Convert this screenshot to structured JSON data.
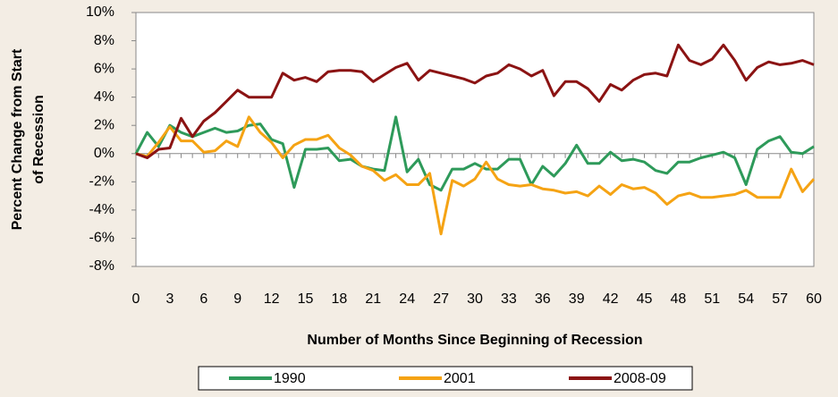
{
  "chart_data": {
    "type": "line",
    "y_label": [
      "Percent Change from Start",
      "of Recession"
    ],
    "x_label": "Number of Months Since Beginning of Recession",
    "x": [
      0,
      1,
      2,
      3,
      4,
      5,
      6,
      7,
      8,
      9,
      10,
      11,
      12,
      13,
      14,
      15,
      16,
      17,
      18,
      19,
      20,
      21,
      22,
      23,
      24,
      25,
      26,
      27,
      28,
      29,
      30,
      31,
      32,
      33,
      34,
      35,
      36,
      37,
      38,
      39,
      40,
      41,
      42,
      43,
      44,
      45,
      46,
      47,
      48,
      49,
      50,
      51,
      52,
      53,
      54,
      55,
      56,
      57,
      58,
      59,
      60
    ],
    "series": [
      {
        "name": "1990",
        "color": "#2e9a5a",
        "values": [
          0,
          1.5,
          0.5,
          2.0,
          1.5,
          1.2,
          1.5,
          1.8,
          1.5,
          1.6,
          2.0,
          2.1,
          1.0,
          0.7,
          -2.4,
          0.3,
          0.3,
          0.4,
          -0.5,
          -0.4,
          -0.9,
          -1.1,
          -1.2,
          2.6,
          -1.3,
          -0.4,
          -2.2,
          -2.6,
          -1.1,
          -1.1,
          -0.7,
          -1.1,
          -1.1,
          -0.4,
          -0.4,
          -2.2,
          -0.9,
          -1.6,
          -0.7,
          0.6,
          -0.7,
          -0.7,
          0.1,
          -0.5,
          -0.4,
          -0.6,
          -1.2,
          -1.4,
          -0.6,
          -0.6,
          -0.3,
          -0.1,
          0.1,
          -0.3,
          -2.2,
          0.3,
          0.9,
          1.2,
          0.1,
          0.0,
          0.5
        ]
      },
      {
        "name": "2001",
        "color": "#f5a314",
        "values": [
          0,
          -0.2,
          0.8,
          1.9,
          0.9,
          0.9,
          0.1,
          0.2,
          0.9,
          0.5,
          2.6,
          1.5,
          0.8,
          -0.3,
          0.6,
          1.0,
          1.0,
          1.3,
          0.4,
          -0.1,
          -0.9,
          -1.2,
          -1.9,
          -1.5,
          -2.2,
          -2.2,
          -1.4,
          -5.7,
          -1.9,
          -2.3,
          -1.8,
          -0.6,
          -1.8,
          -2.2,
          -2.3,
          -2.2,
          -2.5,
          -2.6,
          -2.8,
          -2.7,
          -3.0,
          -2.3,
          -2.9,
          -2.2,
          -2.5,
          -2.4,
          -2.8,
          -3.6,
          -3.0,
          -2.8,
          -3.1,
          -3.1,
          -3.0,
          -2.9,
          -2.6,
          -3.1,
          -3.1,
          -3.1,
          -1.1,
          -2.7,
          -1.8
        ]
      },
      {
        "name": "2008-09",
        "color": "#8b1313",
        "values": [
          0,
          -0.3,
          0.3,
          0.4,
          2.5,
          1.2,
          2.3,
          2.9,
          3.7,
          4.5,
          4.0,
          4.0,
          4.0,
          5.7,
          5.2,
          5.4,
          5.1,
          5.8,
          5.9,
          5.9,
          5.8,
          5.1,
          5.6,
          6.1,
          6.4,
          5.2,
          5.9,
          5.7,
          5.5,
          5.3,
          5.0,
          5.5,
          5.7,
          6.3,
          6.0,
          5.5,
          5.9,
          4.1,
          5.1,
          5.1,
          4.6,
          3.7,
          4.9,
          4.5,
          5.2,
          5.6,
          5.7,
          5.5,
          7.7,
          6.6,
          6.3,
          6.7,
          7.7,
          6.6,
          5.2,
          6.1,
          6.5,
          6.3,
          6.4,
          6.6,
          6.3
        ]
      }
    ],
    "xlim": [
      0,
      60
    ],
    "xticks": [
      0,
      3,
      6,
      9,
      12,
      15,
      18,
      21,
      24,
      27,
      30,
      33,
      36,
      39,
      42,
      45,
      48,
      51,
      54,
      57,
      60
    ],
    "ylim": [
      -8,
      10
    ],
    "yticks": [
      {
        "value": -8,
        "label": "-8%"
      },
      {
        "value": -6,
        "label": "-6%"
      },
      {
        "value": -4,
        "label": "-4%"
      },
      {
        "value": -2,
        "label": "-2%"
      },
      {
        "value": 0,
        "label": "0%"
      },
      {
        "value": 2,
        "label": "2%"
      },
      {
        "value": 4,
        "label": "4%"
      },
      {
        "value": 6,
        "label": "6%"
      },
      {
        "value": 8,
        "label": "8%"
      },
      {
        "value": 10,
        "label": "10%"
      }
    ],
    "grid": false
  }
}
